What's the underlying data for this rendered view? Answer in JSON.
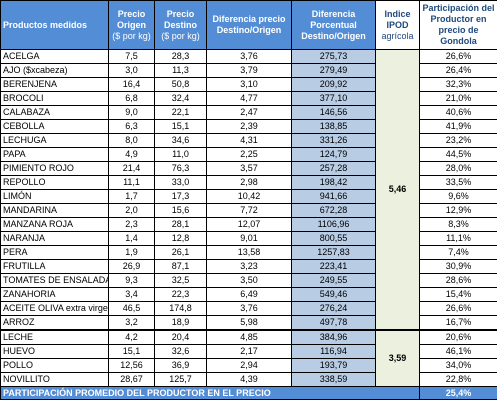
{
  "headers": {
    "product": "Productos medidos",
    "origin": "Precio Origen",
    "origin_unit": "($ por kg)",
    "dest": "Precio Destino",
    "dest_unit": "($ por kg)",
    "diff": "Diferencia precio Destino/Origen",
    "pct": "Diferencia Porcentual Destino/Origen",
    "ipod": "Indice IPOD",
    "ipod_sub": "agrícola",
    "part": "Participación del Productor en precio de Gondola"
  },
  "group1_ipod": "5,46",
  "group2_ipod": "3,59",
  "rows_group1": [
    {
      "name": "ACELGA",
      "origin": "7,5",
      "dest": "28,3",
      "diff": "3,76",
      "pct": "275,73",
      "part": "26,6%"
    },
    {
      "name": "AJO  ($xcabeza)",
      "origin": "3,0",
      "dest": "11,3",
      "diff": "3,79",
      "pct": "279,49",
      "part": "26,4%"
    },
    {
      "name": "BERENJENA",
      "origin": "16,4",
      "dest": "50,8",
      "diff": "3,10",
      "pct": "209,92",
      "part": "32,3%"
    },
    {
      "name": "BROCOLI",
      "origin": "6,8",
      "dest": "32,4",
      "diff": "4,77",
      "pct": "377,10",
      "part": "21,0%"
    },
    {
      "name": "CALABAZA",
      "origin": "9,0",
      "dest": "22,1",
      "diff": "2,47",
      "pct": "146,56",
      "part": "40,6%"
    },
    {
      "name": "CEBOLLA",
      "origin": "6,3",
      "dest": "15,1",
      "diff": "2,39",
      "pct": "138,85",
      "part": "41,9%"
    },
    {
      "name": "LECHUGA",
      "origin": "8,0",
      "dest": "34,6",
      "diff": "4,31",
      "pct": "331,26",
      "part": "23,2%"
    },
    {
      "name": "PAPA",
      "origin": "4,9",
      "dest": "11,0",
      "diff": "2,25",
      "pct": "124,79",
      "part": "44,5%"
    },
    {
      "name": "PIMIENTO ROJO",
      "origin": "21,4",
      "dest": "76,3",
      "diff": "3,57",
      "pct": "257,28",
      "part": "28,0%"
    },
    {
      "name": "REPOLLO",
      "origin": "11,1",
      "dest": "33,0",
      "diff": "2,98",
      "pct": "198,42",
      "part": "33,5%"
    },
    {
      "name": "LIMÓN",
      "origin": "1,7",
      "dest": "17,3",
      "diff": "10,42",
      "pct": "941,66",
      "part": "9,6%"
    },
    {
      "name": "MANDARINA",
      "origin": "2,0",
      "dest": "15,6",
      "diff": "7,72",
      "pct": "672,28",
      "part": "12,9%"
    },
    {
      "name": "MANZANA ROJA",
      "origin": "2,3",
      "dest": "28,1",
      "diff": "12,07",
      "pct": "1106,96",
      "part": "8,3%"
    },
    {
      "name": "NARANJA",
      "origin": "1,4",
      "dest": "12,8",
      "diff": "9,01",
      "pct": "800,55",
      "part": "11,1%"
    },
    {
      "name": "PERA",
      "origin": "1,9",
      "dest": "26,1",
      "diff": "13,58",
      "pct": "1257,83",
      "part": "7,4%"
    },
    {
      "name": "FRUTILLA",
      "origin": "26,9",
      "dest": "87,1",
      "diff": "3,23",
      "pct": "223,41",
      "part": "30,9%"
    },
    {
      "name": "TOMATES DE ENSALADA",
      "origin": "9,3",
      "dest": "32,5",
      "diff": "3,50",
      "pct": "249,55",
      "part": "28,6%"
    },
    {
      "name": "ZANAHORIA",
      "origin": "3,4",
      "dest": "22,3",
      "diff": "6,49",
      "pct": "549,46",
      "part": "15,4%"
    },
    {
      "name": "ACEITE OLIVA extra virgen",
      "origin": "46,5",
      "dest": "174,8",
      "diff": "3,76",
      "pct": "276,24",
      "part": "26,6%"
    },
    {
      "name": "ARROZ",
      "origin": "3,2",
      "dest": "18,9",
      "diff": "5,98",
      "pct": "497,78",
      "part": "16,7%"
    }
  ],
  "rows_group2": [
    {
      "name": "LECHE",
      "origin": "4,2",
      "dest": "20,4",
      "diff": "4,85",
      "pct": "384,96",
      "part": "20,6%"
    },
    {
      "name": "HUEVO",
      "origin": "15,1",
      "dest": "32,6",
      "diff": "2,17",
      "pct": "116,94",
      "part": "46,1%"
    },
    {
      "name": "POLLO",
      "origin": "12,56",
      "dest": "36,9",
      "diff": "2,94",
      "pct": "193,79",
      "part": "34,0%"
    },
    {
      "name": "NOVILLITO",
      "origin": "28,67",
      "dest": "125,7",
      "diff": "4,39",
      "pct": "338,59",
      "part": "22,8%"
    }
  ],
  "footer": {
    "label": "PARTICIPACIÓN PROMEDIO DEL PRODUCTOR EN EL PRECIO",
    "value": "25,4%"
  },
  "colors": {
    "header_blue": "#538dd5",
    "pct_column": "#b8cce4",
    "ipod_column": "#ebf1de",
    "header_text_dark": "#1f497d"
  }
}
